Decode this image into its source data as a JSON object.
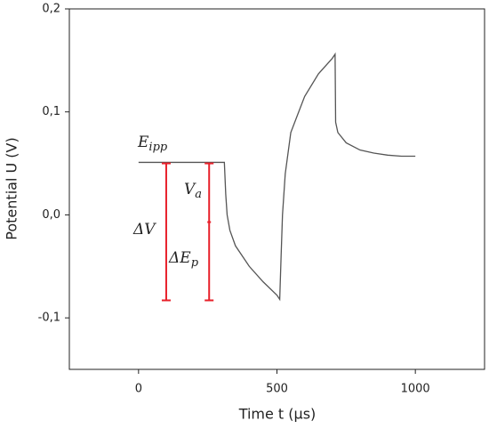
{
  "chart_data": {
    "type": "line",
    "x_label": "Time t (µs)",
    "y_label": "Potential U (V)",
    "x": [
      0,
      100,
      200,
      300,
      310,
      315,
      320,
      330,
      350,
      400,
      450,
      500,
      510,
      515,
      520,
      530,
      550,
      600,
      650,
      700,
      710,
      712,
      720,
      750,
      800,
      850,
      900,
      950,
      1000
    ],
    "series": [
      {
        "color": "#555555",
        "values": [
          0.051,
          0.051,
          0.051,
          0.051,
          0.051,
          0.02,
          0.0,
          -0.015,
          -0.03,
          -0.05,
          -0.065,
          -0.078,
          -0.082,
          -0.04,
          0.0,
          0.04,
          0.08,
          0.115,
          0.137,
          0.152,
          0.156,
          0.09,
          0.08,
          0.07,
          0.063,
          0.06,
          0.058,
          0.057,
          0.057
        ]
      }
    ],
    "xlim": [
      -250,
      1250
    ],
    "ylim": [
      -0.15,
      0.2
    ],
    "xticks": [
      0,
      500,
      1000
    ],
    "yticks": [
      {
        "value": -0.1,
        "label": "-0,1"
      },
      {
        "value": 0.0,
        "label": "0,0"
      },
      {
        "value": 0.1,
        "label": "0,1"
      },
      {
        "value": 0.2,
        "label": "0,2"
      }
    ],
    "marker_color": "#e8202a",
    "markers": [
      {
        "x": 100,
        "y_top": 0.05,
        "y_bottom": -0.083
      },
      {
        "x": 255,
        "y_top": 0.05,
        "y_mid": -0.007,
        "y_bottom": -0.083
      }
    ],
    "annotations": [
      {
        "symbol": "E",
        "subscript": "ipp"
      },
      {
        "symbol": "V",
        "subscript": "a"
      },
      {
        "symbol": "ΔV"
      },
      {
        "symbol": "ΔE",
        "subscript": "p"
      }
    ]
  }
}
